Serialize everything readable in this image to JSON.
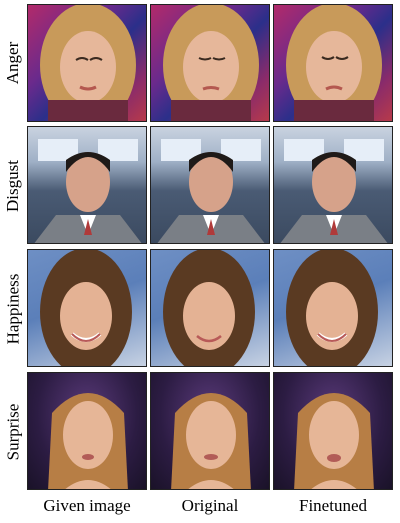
{
  "rows": [
    {
      "label": "Anger"
    },
    {
      "label": "Disgust"
    },
    {
      "label": "Happiness"
    },
    {
      "label": "Surprise"
    }
  ],
  "columns": [
    {
      "label": "Given image"
    },
    {
      "label": "Original"
    },
    {
      "label": "Finetuned"
    }
  ]
}
